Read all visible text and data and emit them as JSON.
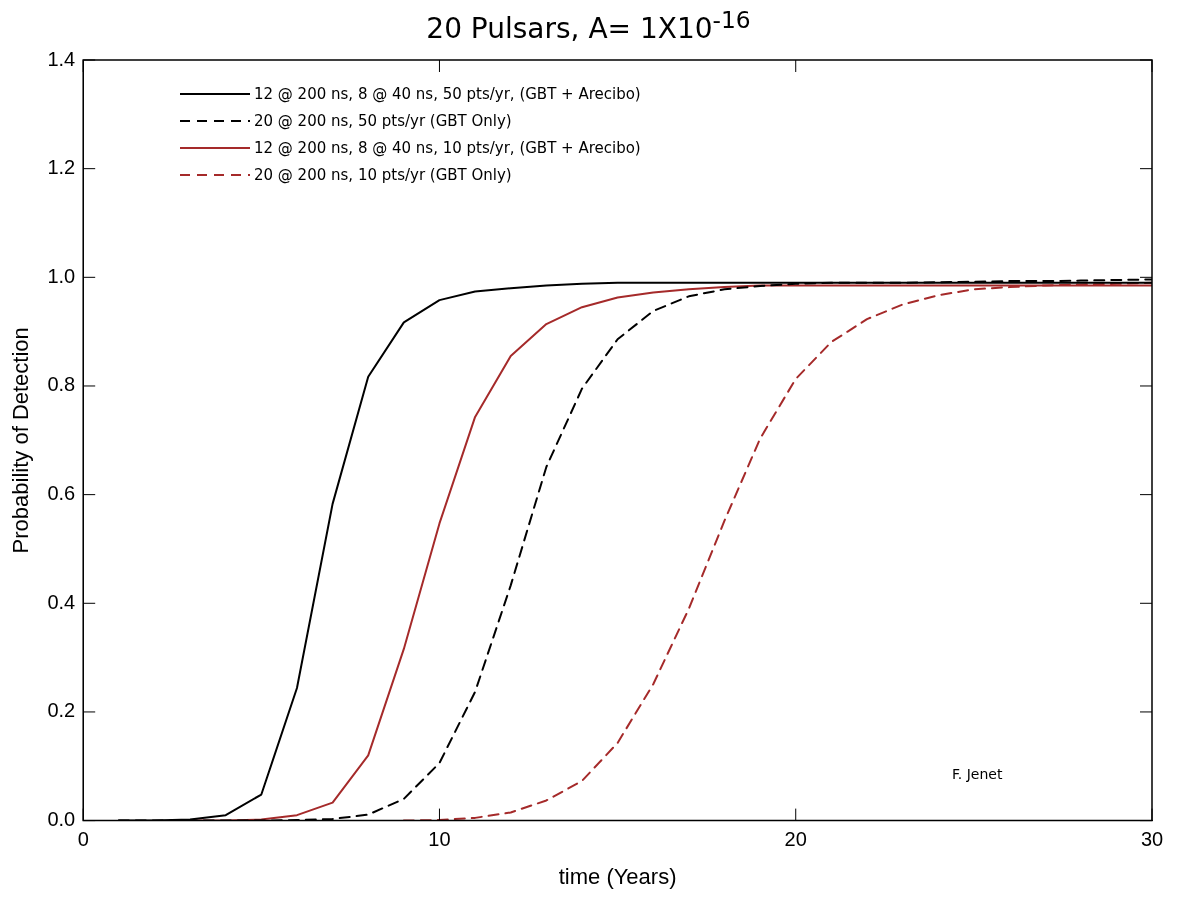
{
  "chart_data": {
    "type": "line",
    "title": "20 Pulsars, A= 1X10$^{-16}$",
    "xlabel": "time (Years)",
    "ylabel": "Probability of Detection",
    "x": [
      1,
      2,
      3,
      4,
      5,
      6,
      7,
      8,
      9,
      10,
      11,
      12,
      13,
      14,
      15,
      16,
      17,
      18,
      19,
      20,
      21,
      22,
      23,
      24,
      25,
      26,
      27,
      28,
      29,
      30
    ],
    "series": [
      {
        "name": "12 @ 200 ns, 8 @ 40 ns, 50 pts/yr, (GBT + Arecibo)",
        "color": "#000000",
        "line_style": "solid",
        "values": [
          0,
          0,
          0.002,
          0.01,
          0.048,
          0.244,
          0.583,
          0.817,
          0.917,
          0.958,
          0.974,
          0.98,
          0.985,
          0.988,
          0.99,
          0.99,
          0.99,
          0.99,
          0.99,
          0.99,
          0.99,
          0.99,
          0.99,
          0.99,
          0.99,
          0.99,
          0.99,
          0.99,
          0.99,
          0.99
        ]
      },
      {
        "name": "20 @ 200 ns, 50 pts/yr (GBT Only)",
        "color": "#000000",
        "line_style": "dashed",
        "values": [
          0,
          0,
          0,
          0,
          0,
          0.001,
          0.003,
          0.011,
          0.04,
          0.106,
          0.237,
          0.433,
          0.651,
          0.795,
          0.886,
          0.938,
          0.965,
          0.978,
          0.984,
          0.988,
          0.99,
          0.99,
          0.99,
          0.991,
          0.992,
          0.993,
          0.993,
          0.994,
          0.995,
          0.996
        ]
      },
      {
        "name": "12 @ 200 ns, 8 @ 40 ns, 10 pts/yr, (GBT + Arecibo)",
        "color": "#a52a2a",
        "line_style": "solid",
        "values": [
          null,
          null,
          0,
          0,
          0.002,
          0.01,
          0.033,
          0.12,
          0.316,
          0.547,
          0.743,
          0.855,
          0.914,
          0.945,
          0.963,
          0.972,
          0.978,
          0.982,
          0.985,
          0.985,
          0.985,
          0.985,
          0.985,
          0.985,
          0.985,
          0.985,
          0.985,
          0.985,
          0.985,
          0.985
        ]
      },
      {
        "name": "20 @ 200 ns, 10 pts/yr (GBT Only)",
        "color": "#a52a2a",
        "line_style": "dashed",
        "values": [
          null,
          null,
          null,
          null,
          null,
          null,
          null,
          null,
          0,
          0.001,
          0.005,
          0.015,
          0.037,
          0.073,
          0.143,
          0.251,
          0.39,
          0.552,
          0.703,
          0.813,
          0.881,
          0.923,
          0.95,
          0.967,
          0.978,
          0.982,
          0.985,
          0.987,
          0.988,
          0.99
        ]
      }
    ],
    "xlim": [
      0,
      30
    ],
    "xticks": [
      0,
      10,
      20,
      30
    ],
    "ylim": [
      0,
      1.4
    ],
    "yticks": [
      {
        "value": 0,
        "label": "0.0"
      },
      {
        "value": 0.2,
        "label": "0.2"
      },
      {
        "value": 0.4,
        "label": "0.4"
      },
      {
        "value": 0.6,
        "label": "0.6"
      },
      {
        "value": 0.8,
        "label": "0.8"
      },
      {
        "value": 1,
        "label": "1.0"
      },
      {
        "value": 1.2,
        "label": "1.2"
      },
      {
        "value": 1.4,
        "label": "1.4"
      }
    ],
    "grid": false,
    "legend": "top left",
    "marker": "none",
    "annotations": [
      "F. Jenet"
    ]
  }
}
